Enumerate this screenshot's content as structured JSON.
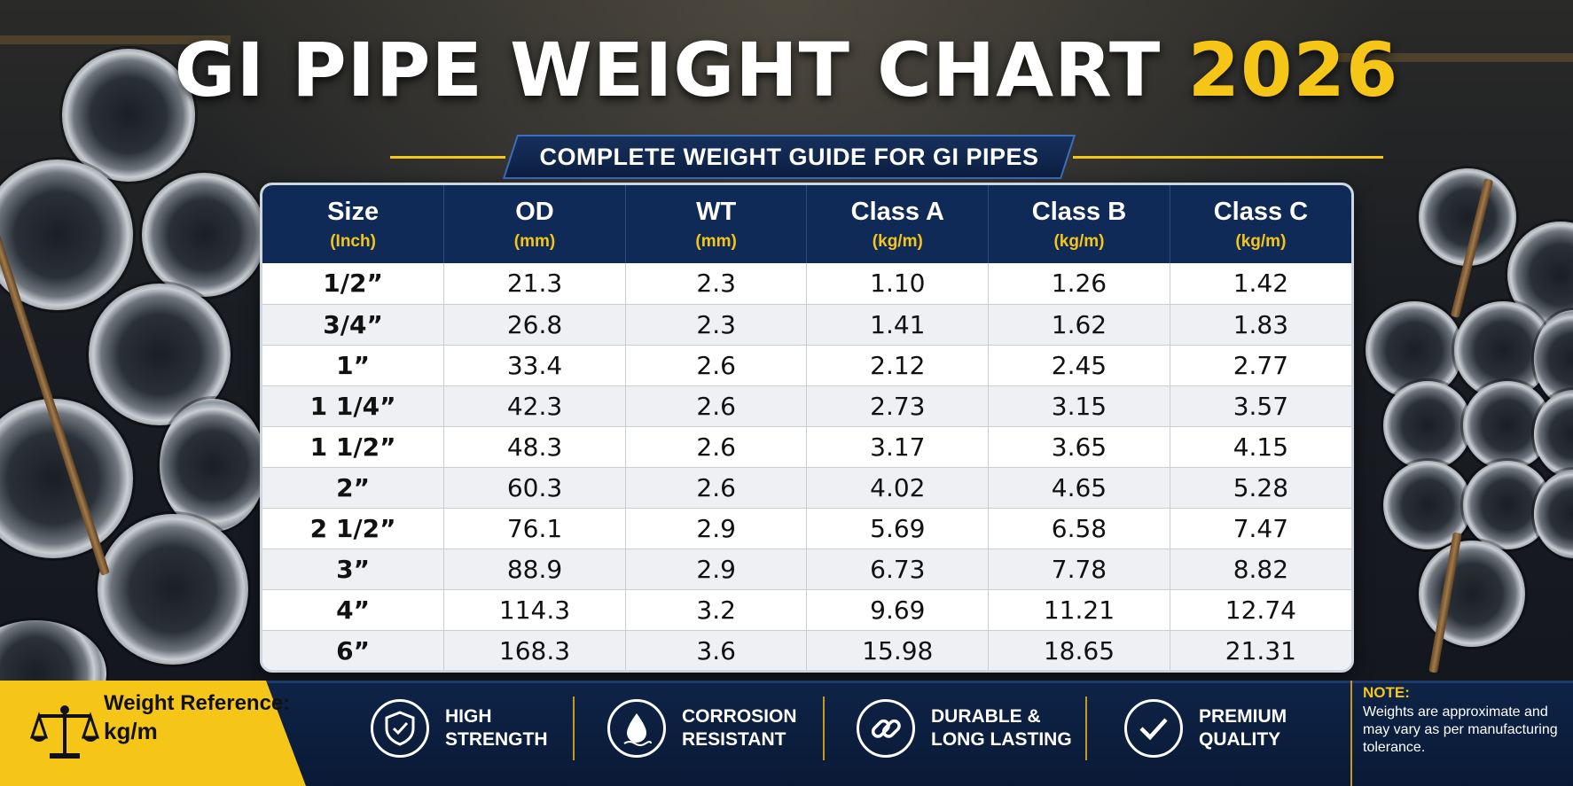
{
  "header": {
    "title_main": "GI PIPE WEIGHT CHART ",
    "title_year": "2026",
    "subtitle": "COMPLETE WEIGHT GUIDE FOR GI PIPES"
  },
  "table": {
    "columns": [
      {
        "label": "Size",
        "unit": "(Inch)"
      },
      {
        "label": "OD",
        "unit": "(mm)"
      },
      {
        "label": "WT",
        "unit": "(mm)"
      },
      {
        "label": "Class A",
        "unit": "(kg/m)"
      },
      {
        "label": "Class B",
        "unit": "(kg/m)"
      },
      {
        "label": "Class C",
        "unit": "(kg/m)"
      }
    ],
    "rows": [
      [
        "1/2”",
        "21.3",
        "2.3",
        "1.10",
        "1.26",
        "1.42"
      ],
      [
        "3/4”",
        "26.8",
        "2.3",
        "1.41",
        "1.62",
        "1.83"
      ],
      [
        "1”",
        "33.4",
        "2.6",
        "2.12",
        "2.45",
        "2.77"
      ],
      [
        "1 1/4”",
        "42.3",
        "2.6",
        "2.73",
        "3.15",
        "3.57"
      ],
      [
        "1 1/2”",
        "48.3",
        "2.6",
        "3.17",
        "3.65",
        "4.15"
      ],
      [
        "2”",
        "60.3",
        "2.6",
        "4.02",
        "4.65",
        "5.28"
      ],
      [
        "2 1/2”",
        "76.1",
        "2.9",
        "5.69",
        "6.58",
        "7.47"
      ],
      [
        "3”",
        "88.9",
        "2.9",
        "6.73",
        "7.78",
        "8.82"
      ],
      [
        "4”",
        "114.3",
        "3.2",
        "9.69",
        "11.21",
        "12.74"
      ],
      [
        "6”",
        "168.3",
        "3.6",
        "15.98",
        "18.65",
        "21.31"
      ]
    ]
  },
  "footer": {
    "reference_label": "Weight Reference:",
    "reference_unit": "kg/m",
    "features": [
      {
        "line1": "HIGH",
        "line2": "STRENGTH",
        "icon": "shield-check-icon"
      },
      {
        "line1": "CORROSION",
        "line2": "RESISTANT",
        "icon": "water-drop-icon"
      },
      {
        "line1": "DURABLE &",
        "line2": "LONG LASTING",
        "icon": "chain-link-icon"
      },
      {
        "line1": "PREMIUM",
        "line2": "QUALITY",
        "icon": "checkmark-icon"
      }
    ],
    "note_title": "NOTE:",
    "note_text": "Weights are approximate and may vary as per manufacturing tolerance."
  },
  "colors": {
    "accent_yellow": "#f5c518",
    "navy": "#0f2a57"
  }
}
